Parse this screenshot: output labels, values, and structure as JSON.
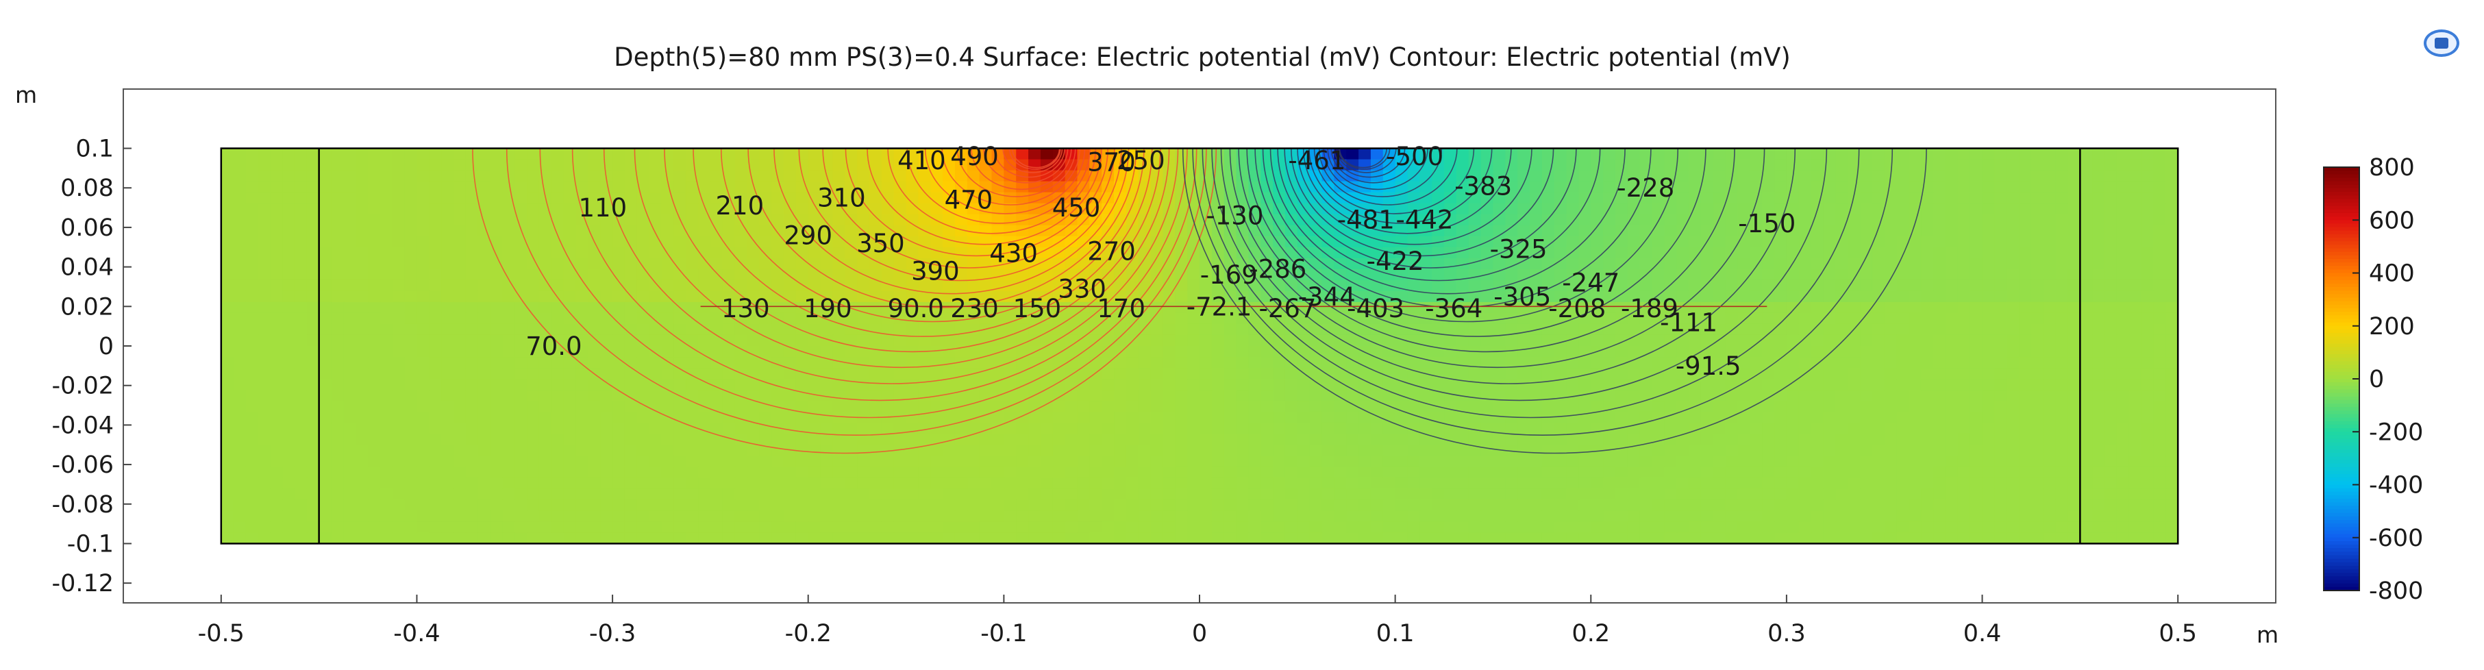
{
  "chart_data": {
    "type": "heatmap",
    "title": "Depth(5)=80 mm PS(3)=0.4   Surface: Electric potential (mV)  Contour: Electric potential (mV)",
    "xlabel": "m",
    "ylabel": "m",
    "xlim": [
      -0.55,
      0.55
    ],
    "ylim": [
      -0.13,
      0.13
    ],
    "x_ticks": [
      "-0.5",
      "-0.4",
      "-0.3",
      "-0.2",
      "-0.1",
      "0",
      "0.1",
      "0.2",
      "0.3",
      "0.4",
      "0.5"
    ],
    "y_ticks": [
      "0.1",
      "0.08",
      "0.06",
      "0.04",
      "0.02",
      "0",
      "-0.02",
      "-0.04",
      "-0.06",
      "-0.08",
      "-0.1",
      "-0.12"
    ],
    "domain": {
      "x": [
        -0.5,
        0.5
      ],
      "y": [
        -0.1,
        0.1
      ],
      "inner_lines_x": [
        -0.45,
        0.45
      ],
      "top_layer_y": [
        0.02,
        0.1
      ]
    },
    "sources": [
      {
        "name": "positive",
        "x": -0.077,
        "y": 0.1,
        "value": 800
      },
      {
        "name": "negative",
        "x": 0.077,
        "y": 0.1,
        "value": -800
      }
    ],
    "colorbar": {
      "min": -800,
      "max": 800,
      "ticks": [
        "800",
        "600",
        "400",
        "200",
        "0",
        "-200",
        "-400",
        "-600",
        "-800"
      ],
      "colors": [
        "#7a0000",
        "#e01010",
        "#ff7a00",
        "#ffd000",
        "#a0e040",
        "#20d8a0",
        "#00c0f0",
        "#1060f0",
        "#00007a"
      ]
    },
    "contour_labels": [
      {
        "text": "110",
        "x": -0.305,
        "y": 0.07
      },
      {
        "text": "210",
        "x": -0.235,
        "y": 0.071
      },
      {
        "text": "310",
        "x": -0.183,
        "y": 0.075
      },
      {
        "text": "410",
        "x": -0.142,
        "y": 0.094
      },
      {
        "text": "490",
        "x": -0.115,
        "y": 0.096
      },
      {
        "text": "370",
        "x": -0.045,
        "y": 0.093
      },
      {
        "text": "250",
        "x": -0.03,
        "y": 0.094
      },
      {
        "text": "470",
        "x": -0.118,
        "y": 0.074
      },
      {
        "text": "450",
        "x": -0.063,
        "y": 0.07
      },
      {
        "text": "290",
        "x": -0.2,
        "y": 0.056
      },
      {
        "text": "350",
        "x": -0.163,
        "y": 0.052
      },
      {
        "text": "430",
        "x": -0.095,
        "y": 0.047
      },
      {
        "text": "270",
        "x": -0.045,
        "y": 0.048
      },
      {
        "text": "390",
        "x": -0.135,
        "y": 0.038
      },
      {
        "text": "330",
        "x": -0.06,
        "y": 0.029
      },
      {
        "text": "130",
        "x": -0.232,
        "y": 0.019
      },
      {
        "text": "190",
        "x": -0.19,
        "y": 0.019
      },
      {
        "text": "90.0",
        "x": -0.145,
        "y": 0.019
      },
      {
        "text": "230",
        "x": -0.115,
        "y": 0.019
      },
      {
        "text": "150",
        "x": -0.083,
        "y": 0.019
      },
      {
        "text": "170",
        "x": -0.04,
        "y": 0.019
      },
      {
        "text": "70.0",
        "x": -0.33,
        "y": 0.0
      },
      {
        "text": "-72.1",
        "x": 0.01,
        "y": 0.02
      },
      {
        "text": "-267",
        "x": 0.045,
        "y": 0.019
      },
      {
        "text": "-130",
        "x": 0.018,
        "y": 0.066
      },
      {
        "text": "-461",
        "x": 0.06,
        "y": 0.094
      },
      {
        "text": "-500",
        "x": 0.11,
        "y": 0.096
      },
      {
        "text": "-383",
        "x": 0.145,
        "y": 0.081
      },
      {
        "text": "-228",
        "x": 0.228,
        "y": 0.08
      },
      {
        "text": "-481",
        "x": 0.085,
        "y": 0.064
      },
      {
        "text": "-442",
        "x": 0.115,
        "y": 0.064
      },
      {
        "text": "-150",
        "x": 0.29,
        "y": 0.062
      },
      {
        "text": "-169",
        "x": 0.015,
        "y": 0.036
      },
      {
        "text": "-286",
        "x": 0.04,
        "y": 0.039
      },
      {
        "text": "-422",
        "x": 0.1,
        "y": 0.043
      },
      {
        "text": "-325",
        "x": 0.163,
        "y": 0.049
      },
      {
        "text": "-344",
        "x": 0.065,
        "y": 0.025
      },
      {
        "text": "-403",
        "x": 0.09,
        "y": 0.019
      },
      {
        "text": "-364",
        "x": 0.13,
        "y": 0.019
      },
      {
        "text": "-305",
        "x": 0.165,
        "y": 0.025
      },
      {
        "text": "-247",
        "x": 0.2,
        "y": 0.032
      },
      {
        "text": "-208",
        "x": 0.193,
        "y": 0.019
      },
      {
        "text": "-189",
        "x": 0.23,
        "y": 0.019
      },
      {
        "text": "-111",
        "x": 0.25,
        "y": 0.012
      },
      {
        "text": "-91.5",
        "x": 0.26,
        "y": -0.01
      }
    ],
    "grid": false,
    "legend": "colorbar-right"
  }
}
